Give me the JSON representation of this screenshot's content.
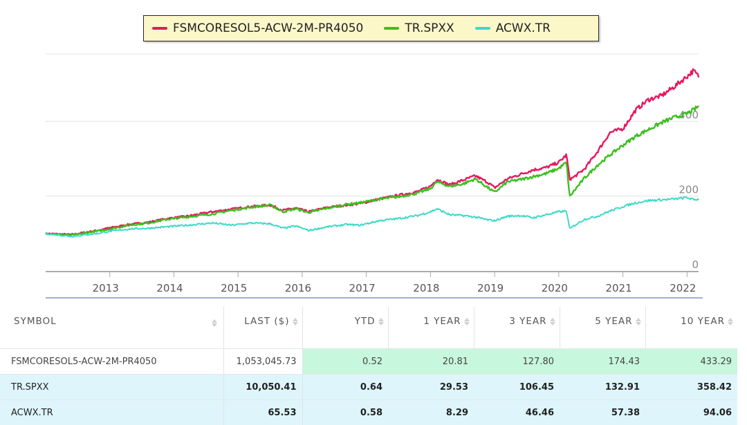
{
  "legend": [
    {
      "label": "FSMCORESOL5-ACW-2M-PR4050",
      "color": "#e8175d"
    },
    {
      "label": "TR.SPXX",
      "color": "#3cbf1f"
    },
    {
      "label": "ACWX.TR",
      "color": "#3dd9c7"
    }
  ],
  "chart_data": {
    "type": "line",
    "x_ticks": [
      "2013",
      "2014",
      "2015",
      "2016",
      "2017",
      "2018",
      "2019",
      "2020",
      "2021",
      "2022"
    ],
    "y_ticks": [
      "0",
      "200",
      "400"
    ],
    "ylim": [
      0,
      580
    ],
    "grid": true,
    "legend_position": "top",
    "series": [
      {
        "name": "FSMCORESOL5-ACW-2M-PR4050",
        "color": "#e8175d",
        "points": [
          [
            2012.0,
            100
          ],
          [
            2012.4,
            97
          ],
          [
            2012.8,
            108
          ],
          [
            2013.0,
            115
          ],
          [
            2013.3,
            124
          ],
          [
            2013.6,
            130
          ],
          [
            2013.9,
            140
          ],
          [
            2014.2,
            146
          ],
          [
            2014.6,
            158
          ],
          [
            2014.9,
            165
          ],
          [
            2015.2,
            172
          ],
          [
            2015.5,
            176
          ],
          [
            2015.7,
            162
          ],
          [
            2015.9,
            168
          ],
          [
            2016.1,
            158
          ],
          [
            2016.4,
            170
          ],
          [
            2016.7,
            176
          ],
          [
            2016.9,
            180
          ],
          [
            2017.2,
            192
          ],
          [
            2017.5,
            202
          ],
          [
            2017.8,
            212
          ],
          [
            2018.0,
            226
          ],
          [
            2018.1,
            245
          ],
          [
            2018.3,
            230
          ],
          [
            2018.5,
            242
          ],
          [
            2018.7,
            254
          ],
          [
            2018.9,
            236
          ],
          [
            2019.0,
            222
          ],
          [
            2019.2,
            246
          ],
          [
            2019.4,
            258
          ],
          [
            2019.6,
            270
          ],
          [
            2019.8,
            276
          ],
          [
            2020.0,
            290
          ],
          [
            2020.12,
            310
          ],
          [
            2020.17,
            245
          ],
          [
            2020.23,
            250
          ],
          [
            2020.4,
            272
          ],
          [
            2020.6,
            318
          ],
          [
            2020.8,
            370
          ],
          [
            2021.0,
            380
          ],
          [
            2021.2,
            430
          ],
          [
            2021.4,
            458
          ],
          [
            2021.6,
            468
          ],
          [
            2021.8,
            492
          ],
          [
            2022.0,
            520
          ],
          [
            2022.1,
            535
          ],
          [
            2022.18,
            520
          ]
        ]
      },
      {
        "name": "TR.SPXX",
        "color": "#3cbf1f",
        "points": [
          [
            2012.0,
            100
          ],
          [
            2012.4,
            95
          ],
          [
            2012.8,
            106
          ],
          [
            2013.0,
            112
          ],
          [
            2013.3,
            122
          ],
          [
            2013.6,
            128
          ],
          [
            2013.9,
            138
          ],
          [
            2014.2,
            144
          ],
          [
            2014.6,
            152
          ],
          [
            2014.9,
            162
          ],
          [
            2015.2,
            170
          ],
          [
            2015.5,
            176
          ],
          [
            2015.7,
            158
          ],
          [
            2015.9,
            166
          ],
          [
            2016.1,
            156
          ],
          [
            2016.4,
            168
          ],
          [
            2016.7,
            178
          ],
          [
            2016.9,
            182
          ],
          [
            2017.2,
            192
          ],
          [
            2017.5,
            198
          ],
          [
            2017.8,
            208
          ],
          [
            2018.0,
            220
          ],
          [
            2018.1,
            238
          ],
          [
            2018.3,
            226
          ],
          [
            2018.5,
            232
          ],
          [
            2018.7,
            246
          ],
          [
            2018.9,
            222
          ],
          [
            2019.0,
            210
          ],
          [
            2019.2,
            238
          ],
          [
            2019.4,
            244
          ],
          [
            2019.6,
            252
          ],
          [
            2019.8,
            260
          ],
          [
            2020.0,
            274
          ],
          [
            2020.12,
            290
          ],
          [
            2020.17,
            198
          ],
          [
            2020.23,
            212
          ],
          [
            2020.4,
            248
          ],
          [
            2020.6,
            282
          ],
          [
            2020.8,
            310
          ],
          [
            2021.0,
            336
          ],
          [
            2021.2,
            360
          ],
          [
            2021.4,
            378
          ],
          [
            2021.6,
            396
          ],
          [
            2021.8,
            410
          ],
          [
            2022.0,
            420
          ],
          [
            2022.1,
            430
          ],
          [
            2022.18,
            440
          ]
        ]
      },
      {
        "name": "ACWX.TR",
        "color": "#3dd9c7",
        "points": [
          [
            2012.0,
            100
          ],
          [
            2012.4,
            92
          ],
          [
            2012.8,
            100
          ],
          [
            2013.0,
            106
          ],
          [
            2013.3,
            112
          ],
          [
            2013.6,
            114
          ],
          [
            2013.9,
            118
          ],
          [
            2014.2,
            122
          ],
          [
            2014.6,
            128
          ],
          [
            2014.9,
            122
          ],
          [
            2015.2,
            128
          ],
          [
            2015.5,
            126
          ],
          [
            2015.7,
            114
          ],
          [
            2015.9,
            120
          ],
          [
            2016.1,
            108
          ],
          [
            2016.4,
            118
          ],
          [
            2016.7,
            124
          ],
          [
            2016.9,
            122
          ],
          [
            2017.2,
            134
          ],
          [
            2017.5,
            140
          ],
          [
            2017.8,
            148
          ],
          [
            2018.0,
            158
          ],
          [
            2018.1,
            166
          ],
          [
            2018.3,
            150
          ],
          [
            2018.5,
            148
          ],
          [
            2018.7,
            144
          ],
          [
            2018.9,
            136
          ],
          [
            2019.0,
            134
          ],
          [
            2019.2,
            146
          ],
          [
            2019.4,
            148
          ],
          [
            2019.6,
            142
          ],
          [
            2019.8,
            150
          ],
          [
            2020.0,
            158
          ],
          [
            2020.12,
            160
          ],
          [
            2020.17,
            112
          ],
          [
            2020.23,
            120
          ],
          [
            2020.4,
            138
          ],
          [
            2020.6,
            146
          ],
          [
            2020.8,
            160
          ],
          [
            2021.0,
            172
          ],
          [
            2021.2,
            182
          ],
          [
            2021.4,
            188
          ],
          [
            2021.6,
            190
          ],
          [
            2021.8,
            192
          ],
          [
            2022.0,
            196
          ],
          [
            2022.1,
            190
          ],
          [
            2022.18,
            192
          ]
        ]
      }
    ]
  },
  "table": {
    "headers": [
      "SYMBOL",
      "LAST ($)",
      "YTD",
      "1 YEAR",
      "3 YEAR",
      "5 YEAR",
      "10 YEAR"
    ],
    "rows": [
      [
        "FSMCORESOL5-ACW-2M-PR4050",
        "1,053,045.73",
        "0.52",
        "20.81",
        "127.80",
        "174.43",
        "433.29"
      ],
      [
        "TR.SPXX",
        "10,050.41",
        "0.64",
        "29.53",
        "106.45",
        "132.91",
        "358.42"
      ],
      [
        "ACWX.TR",
        "65.53",
        "0.58",
        "8.29",
        "46.46",
        "57.38",
        "94.06"
      ]
    ]
  }
}
